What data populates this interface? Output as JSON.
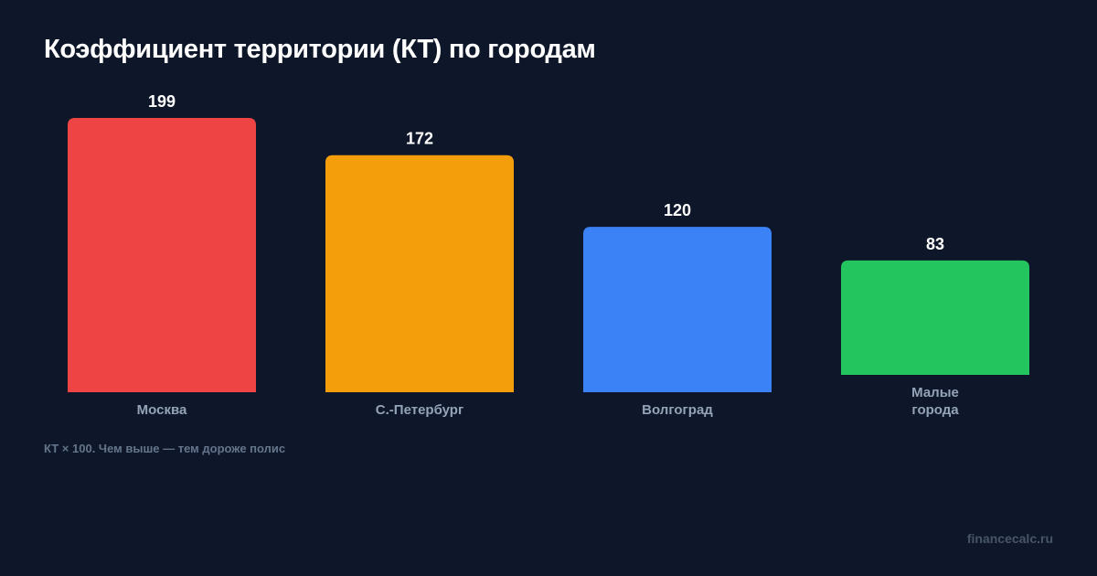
{
  "chart_data": {
    "type": "bar",
    "title": "Коэффициент территории (КТ) по городам",
    "categories": [
      "Москва",
      "С.-Петербург",
      "Волгоград",
      "Малые города"
    ],
    "category_lines": [
      [
        "Москва"
      ],
      [
        "С.-Петербург"
      ],
      [
        "Волгоград"
      ],
      [
        "Малые",
        "города"
      ]
    ],
    "values": [
      199,
      172,
      120,
      83
    ],
    "colors": [
      "#ef4444",
      "#f59e0b",
      "#3b82f6",
      "#22c55e"
    ],
    "data_labels": true,
    "grid": false,
    "ylim": [
      0,
      199
    ]
  },
  "footnote": "КТ × 100. Чем выше — тем дороже полис",
  "watermark": "financecalc.ru"
}
